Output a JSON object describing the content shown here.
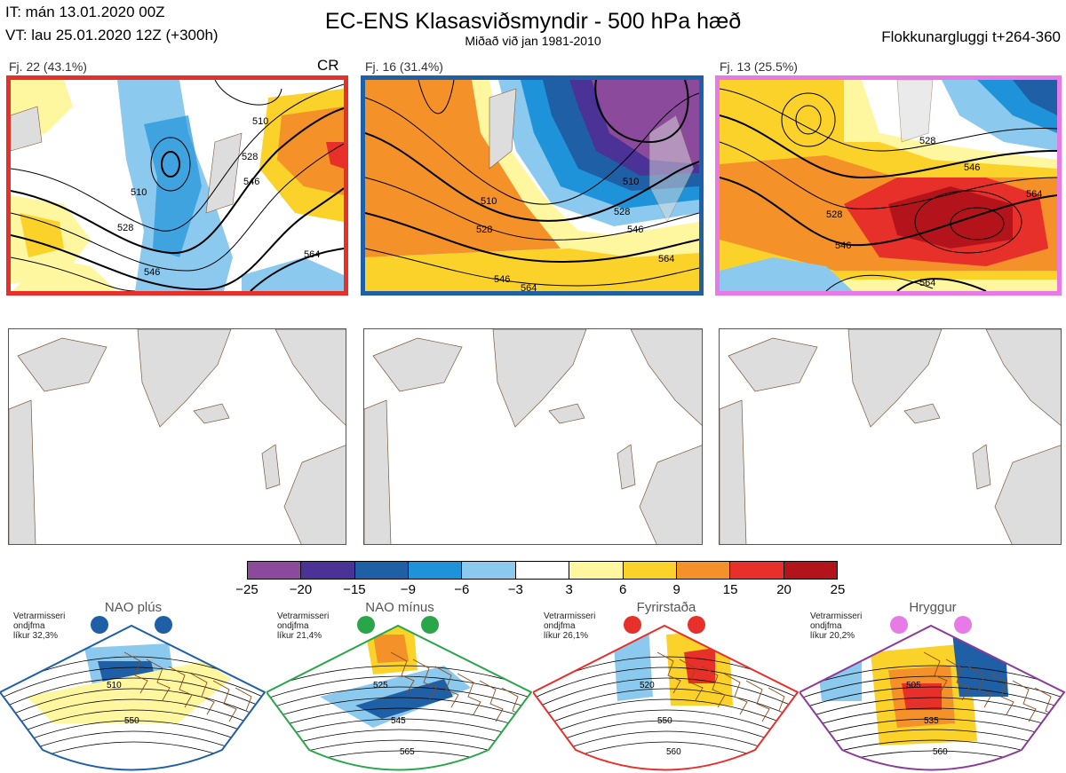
{
  "header": {
    "it_line": "IT: mán 13.01.2020 00Z",
    "vt_line": "VT: lau 25.01.2020 12Z  (+300h)",
    "title": "EC-ENS Klasasviðsmyndir - 500 hPa hæð",
    "subtitle": "Miðað við jan 1981-2010",
    "window": "Flokkunargluggi t+264-360"
  },
  "clusters": [
    {
      "label": "Fj. 22 (43.1%)",
      "tag": "CR",
      "border_color": "#e8302a",
      "contours": [
        "510",
        "528",
        "546",
        "510",
        "528",
        "546",
        "564"
      ]
    },
    {
      "label": "Fj. 16 (31.4%)",
      "tag": "",
      "border_color": "#1f5fa6",
      "contours": [
        "510",
        "528",
        "546",
        "564",
        "546",
        "564",
        "528",
        "510"
      ]
    },
    {
      "label": "Fj. 13 (25.5%)",
      "tag": "",
      "border_color": "#e77ae7",
      "contours": [
        "528",
        "546",
        "564",
        "528",
        "546",
        "564"
      ]
    }
  ],
  "colorbar": {
    "colors": [
      "#8b4a9c",
      "#4b3296",
      "#1f5fa6",
      "#1e93d9",
      "#8cc9ee",
      "#ffffff",
      "#fff6a0",
      "#fbd22a",
      "#f49128",
      "#e8302a",
      "#b3141b"
    ],
    "ticks": [
      "−25",
      "−20",
      "−15",
      "−9",
      "−6",
      "−3",
      "3",
      "6",
      "9",
      "15",
      "20",
      "25"
    ]
  },
  "regimes": [
    {
      "name": "NAO plús",
      "season": "Vetrarmisseri",
      "mean": "ondjfma",
      "prob": "líkur 32,3%",
      "dot_color": "#1f5fa6",
      "fan_color": "#1f5fa6",
      "labels": [
        "510",
        "550"
      ]
    },
    {
      "name": "NAO mínus",
      "season": "Vetrarmisseri",
      "mean": "ondjfma",
      "prob": "líkur 21,4%",
      "dot_color": "#2aa64a",
      "fan_color": "#2aa64a",
      "labels": [
        "525",
        "545",
        "565"
      ]
    },
    {
      "name": "Fyrirstaða",
      "season": "Vetrarmisseri",
      "mean": "ondjfma",
      "prob": "líkur 26,1%",
      "dot_color": "#e8302a",
      "fan_color": "#e8302a",
      "labels": [
        "520",
        "550",
        "560"
      ]
    },
    {
      "name": "Hryggur",
      "season": "Vetrarmisseri",
      "mean": "ondjfma",
      "prob": "líkur 20,2%",
      "dot_color": "#e77ae7",
      "fan_color": "#8b3a9c",
      "labels": [
        "505",
        "535",
        "560"
      ]
    }
  ]
}
